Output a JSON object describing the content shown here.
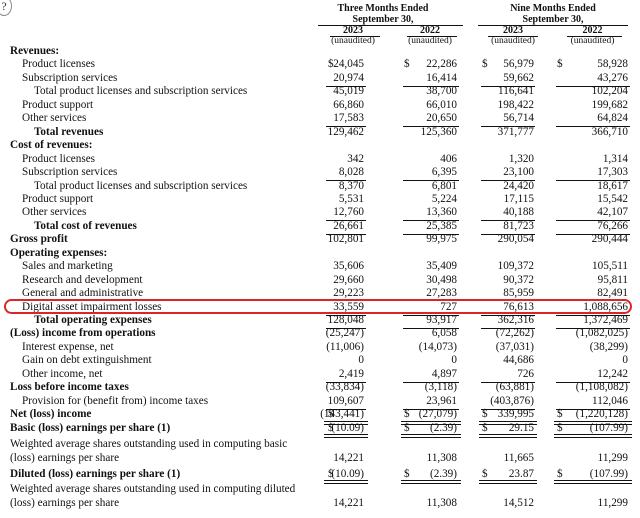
{
  "header": {
    "three_months_line1": "Three Months Ended",
    "three_months_line2": "September 30,",
    "nine_months_line1": "Nine Months Ended",
    "nine_months_line2": "September 30,",
    "years": [
      "2023",
      "2022",
      "2023",
      "2022"
    ],
    "unaudited": "(unaudited)",
    "corner_glyph": "?"
  },
  "rows": [
    {
      "label": "Revenues:",
      "style": "bold",
      "indent": 0,
      "values": [
        "",
        "",
        "",
        ""
      ]
    },
    {
      "label": "Product licenses",
      "indent": 1,
      "dollar": true,
      "values": [
        "24,045",
        "22,286",
        "56,979",
        "58,928"
      ]
    },
    {
      "label": "Subscription services",
      "indent": 1,
      "values": [
        "20,974",
        "16,414",
        "59,662",
        "43,276"
      ]
    },
    {
      "label": "Total product licenses and subscription services",
      "indent": 2,
      "values": [
        "45,019",
        "38,700",
        "116,641",
        "102,204"
      ]
    },
    {
      "label": "Product support",
      "indent": 1,
      "values": [
        "66,860",
        "66,010",
        "198,422",
        "199,682"
      ]
    },
    {
      "label": "Other services",
      "indent": 1,
      "values": [
        "17,583",
        "20,650",
        "56,714",
        "64,824"
      ]
    },
    {
      "label": "Total revenues",
      "style": "bold",
      "indent": 2,
      "values": [
        "129,462",
        "125,360",
        "371,777",
        "366,710"
      ]
    },
    {
      "label": "Cost of revenues:",
      "style": "bold",
      "indent": 0,
      "values": [
        "",
        "",
        "",
        ""
      ]
    },
    {
      "label": "Product licenses",
      "indent": 1,
      "values": [
        "342",
        "406",
        "1,320",
        "1,314"
      ]
    },
    {
      "label": "Subscription services",
      "indent": 1,
      "values": [
        "8,028",
        "6,395",
        "23,100",
        "17,303"
      ]
    },
    {
      "label": "Total product licenses and subscription services",
      "indent": 2,
      "values": [
        "8,370",
        "6,801",
        "24,420",
        "18,617"
      ]
    },
    {
      "label": "Product support",
      "indent": 1,
      "values": [
        "5,531",
        "5,224",
        "17,115",
        "15,542"
      ]
    },
    {
      "label": "Other services",
      "indent": 1,
      "values": [
        "12,760",
        "13,360",
        "40,188",
        "42,107"
      ]
    },
    {
      "label": "Total cost of revenues",
      "style": "bold",
      "indent": 2,
      "values": [
        "26,661",
        "25,385",
        "81,723",
        "76,266"
      ]
    },
    {
      "label": "Gross profit",
      "style": "bold",
      "indent": 0,
      "values": [
        "102,801",
        "99,975",
        "290,054",
        "290,444"
      ]
    },
    {
      "label": "Operating expenses:",
      "style": "bold",
      "indent": 0,
      "values": [
        "",
        "",
        "",
        ""
      ]
    },
    {
      "label": "Sales and marketing",
      "indent": 1,
      "values": [
        "35,606",
        "35,409",
        "109,372",
        "105,511"
      ]
    },
    {
      "label": "Research and development",
      "indent": 1,
      "values": [
        "29,660",
        "30,498",
        "90,372",
        "95,811"
      ]
    },
    {
      "label": "General and administrative",
      "indent": 1,
      "values": [
        "29,223",
        "27,283",
        "85,959",
        "82,491"
      ]
    },
    {
      "label": "Digital asset impairment losses",
      "indent": 1,
      "values": [
        "33,559",
        "727",
        "76,613",
        "1,088,656"
      ]
    },
    {
      "label": "Total operating expenses",
      "style": "bold",
      "indent": 2,
      "values": [
        "128,048",
        "93,917",
        "362,316",
        "1,372,469"
      ]
    },
    {
      "label": "(Loss) income from operations",
      "style": "bold",
      "indent": 0,
      "values": [
        "(25,247)",
        "6,058",
        "(72,262)",
        "(1,082,025)"
      ]
    },
    {
      "label": "Interest expense, net",
      "indent": 1,
      "values": [
        "(11,006)",
        "(14,073)",
        "(37,031)",
        "(38,299)"
      ]
    },
    {
      "label": "Gain on debt extinguishment",
      "indent": 1,
      "values": [
        "0",
        "0",
        "44,686",
        "0"
      ]
    },
    {
      "label": "Other income, net",
      "indent": 1,
      "values": [
        "2,419",
        "4,897",
        "726",
        "12,242"
      ]
    },
    {
      "label": "Loss before income taxes",
      "style": "bold",
      "indent": 0,
      "values": [
        "(33,834)",
        "(3,118)",
        "(63,881)",
        "(1,108,082)"
      ]
    },
    {
      "label": "Provision for (benefit from) income taxes",
      "indent": 1,
      "values": [
        "109,607",
        "23,961",
        "(403,876)",
        "112,046"
      ]
    },
    {
      "label": "Net (loss) income",
      "style": "bold",
      "indent": 0,
      "dollar": true,
      "values": [
        "(143,441)",
        "(27,079)",
        "339,995",
        "(1,220,128)"
      ]
    },
    {
      "label": "Basic (loss) earnings per share (1)",
      "style": "bold",
      "indent": 0,
      "dollar": true,
      "values": [
        "(10.09)",
        "(2.39)",
        "29.15",
        "(107.99)"
      ]
    }
  ],
  "rows_tail": [
    {
      "line1": "Weighted average shares outstanding used in computing basic",
      "line2": "(loss) earnings per share",
      "style": "normal",
      "values": [
        "14,221",
        "11,308",
        "11,665",
        "11,299"
      ]
    },
    {
      "line1": "Diluted (loss) earnings per share (1)",
      "line2": "",
      "style": "bold",
      "dollar": true,
      "values": [
        "(10.09)",
        "(2.39)",
        "23.87",
        "(107.99)"
      ]
    },
    {
      "line1": "Weighted average shares outstanding used in computing diluted",
      "line2": "(loss) earnings per share",
      "style": "normal",
      "values": [
        "14,221",
        "11,308",
        "14,512",
        "11,299"
      ]
    }
  ],
  "dollar_sign": "$",
  "highlight_color": "#d9262b"
}
